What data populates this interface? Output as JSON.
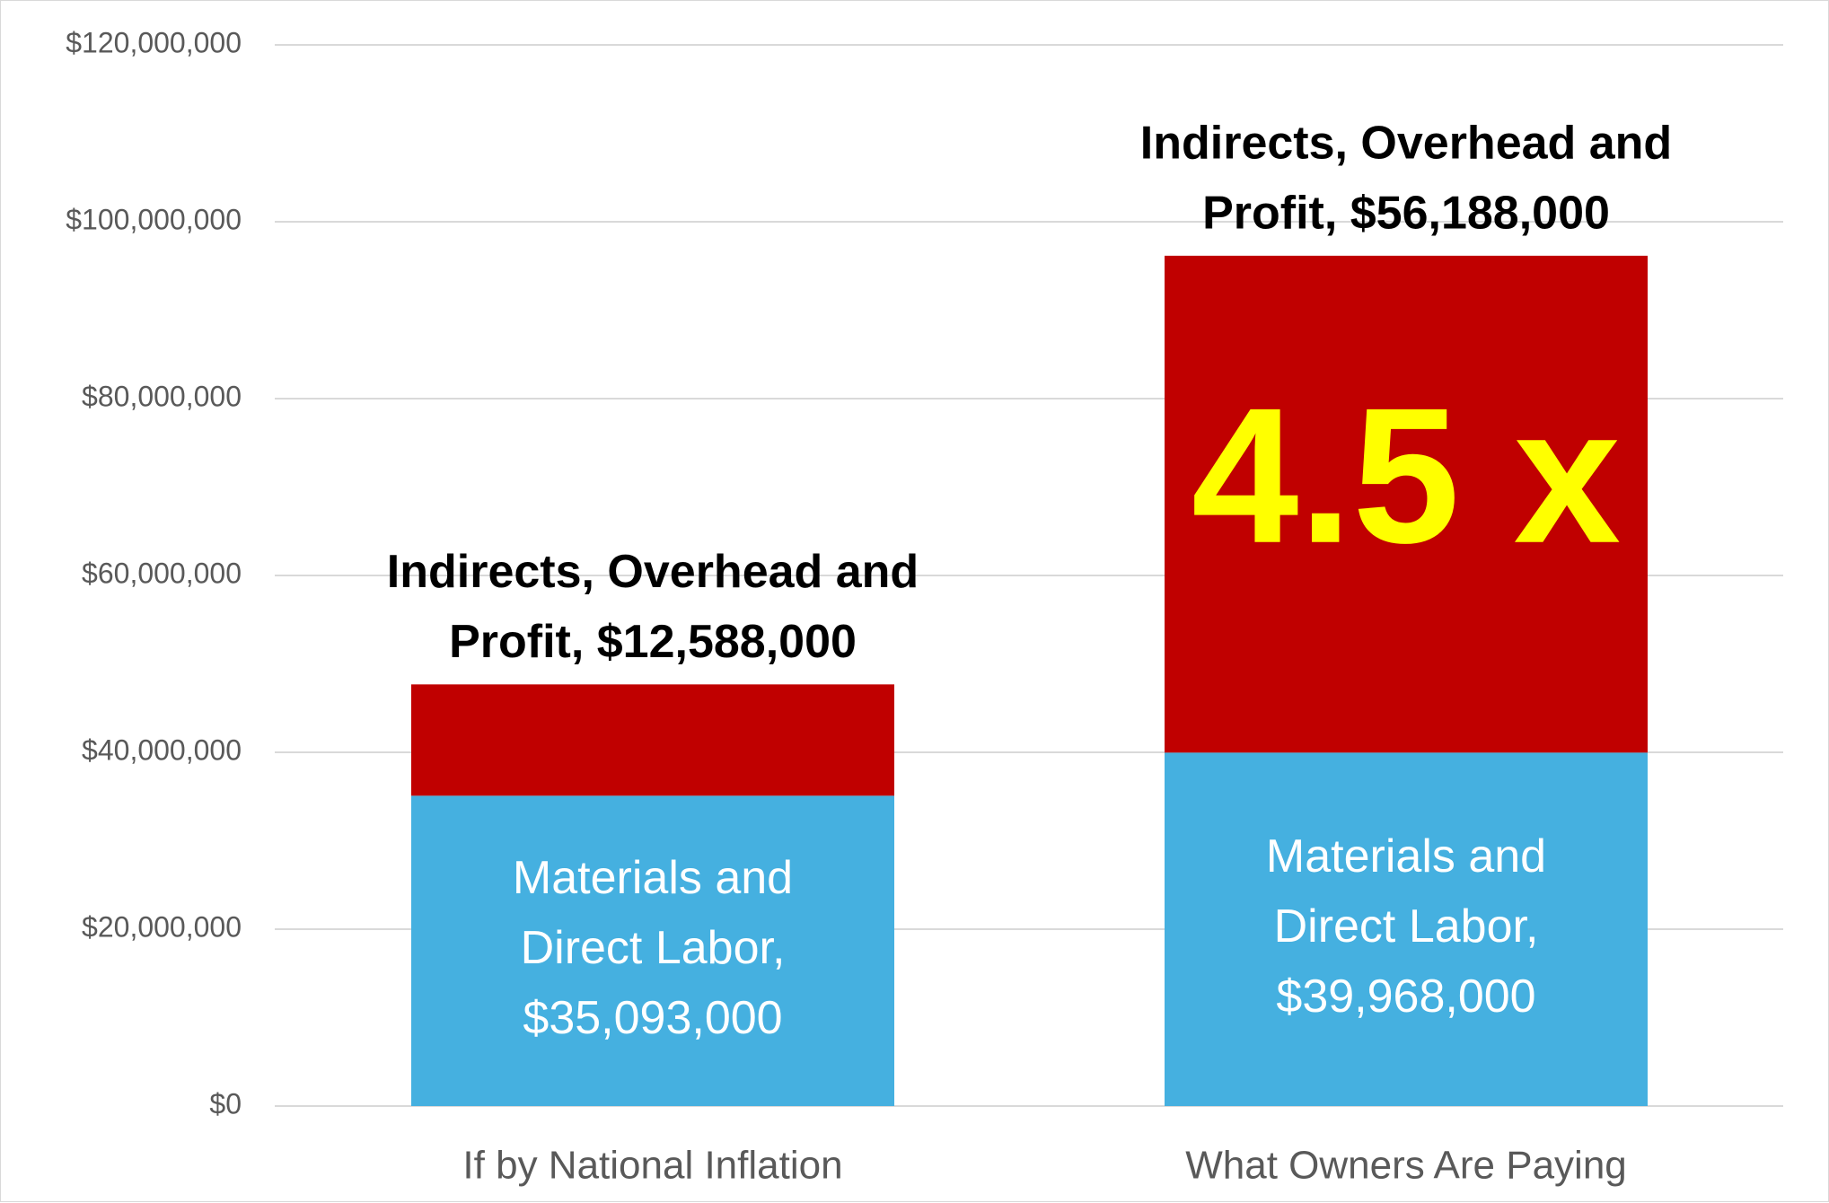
{
  "chart_data": {
    "type": "bar",
    "stacked": true,
    "categories": [
      "If by National Inflation",
      "What Owners Are Paying"
    ],
    "series": [
      {
        "name": "Materials and Direct Labor",
        "values": [
          35093000,
          39968000
        ],
        "color": "#45b0e0",
        "data_labels": [
          [
            "Materials and",
            "Direct Labor,",
            "$35,093,000"
          ],
          [
            "Materials and",
            "Direct Labor,",
            "$39,968,000"
          ]
        ]
      },
      {
        "name": "Indirects, Overhead and Profit",
        "values": [
          12588000,
          56188000
        ],
        "color": "#c00000",
        "data_labels": [
          [
            "Indirects, Overhead and",
            "Profit, $12,588,000"
          ],
          [
            "Indirects, Overhead and",
            "Profit, $56,188,000"
          ]
        ]
      }
    ],
    "ylim": [
      0,
      120000000
    ],
    "y_ticks": [
      0,
      20000000,
      40000000,
      60000000,
      80000000,
      100000000,
      120000000
    ],
    "y_tick_labels": [
      "$0",
      "$20,000,000",
      "$40,000,000",
      "$60,000,000",
      "$80,000,000",
      "$100,000,000",
      "$120,000,000"
    ],
    "grid": true,
    "gridline_color": "#d9d9d9",
    "annotation": {
      "text": "4.5 x",
      "color": "#ffff00",
      "category": "What Owners Are Paying"
    }
  }
}
